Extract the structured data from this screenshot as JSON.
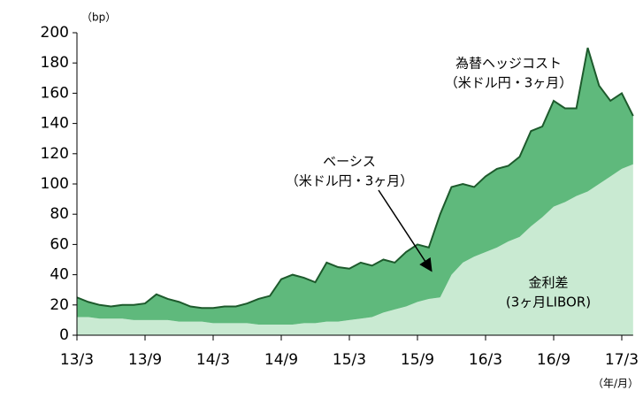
{
  "chart_data": {
    "type": "stacked_area",
    "y_unit": "（bp）",
    "x_unit": "（年/月）",
    "categories": [
      "13/3",
      null,
      null,
      null,
      null,
      null,
      "13/9",
      null,
      null,
      null,
      null,
      null,
      "14/3",
      null,
      null,
      null,
      null,
      null,
      "14/9",
      null,
      null,
      null,
      null,
      null,
      "15/3",
      null,
      null,
      null,
      null,
      null,
      "15/9",
      null,
      null,
      null,
      null,
      null,
      "16/3",
      null,
      null,
      null,
      null,
      null,
      "16/9",
      null,
      null,
      null,
      null,
      null,
      "17/3",
      null
    ],
    "series": [
      {
        "name": "金利差",
        "note": "(3ヶ月LIBOR)",
        "color": "#c9ead2",
        "values": [
          12,
          12,
          11,
          11,
          11,
          10,
          10,
          10,
          10,
          9,
          9,
          9,
          8,
          8,
          8,
          8,
          7,
          7,
          7,
          7,
          8,
          8,
          9,
          9,
          10,
          11,
          12,
          15,
          17,
          19,
          22,
          24,
          25,
          40,
          48,
          52,
          55,
          58,
          62,
          65,
          72,
          78,
          85,
          88,
          92,
          95,
          100,
          105,
          110,
          113
        ]
      },
      {
        "name": "ベーシス",
        "note": "（米ドル円・3ヶ月）",
        "color": "#5fb97c",
        "values": [
          13,
          10,
          9,
          8,
          9,
          10,
          11,
          17,
          14,
          13,
          10,
          9,
          10,
          11,
          11,
          13,
          17,
          19,
          30,
          33,
          30,
          27,
          39,
          36,
          34,
          37,
          34,
          35,
          31,
          36,
          38,
          34,
          55,
          58,
          52,
          46,
          50,
          52,
          50,
          53,
          63,
          60,
          70,
          62,
          58,
          95,
          65,
          50,
          50,
          32
        ]
      }
    ],
    "total_label": "為替ヘッジコスト",
    "total_note": "（米ドル円・3ヶ月）",
    "total_color": "#1d5a2c",
    "ylim": [
      0,
      200
    ],
    "yticks": [
      0,
      20,
      40,
      60,
      80,
      100,
      120,
      140,
      160,
      180,
      200
    ]
  }
}
